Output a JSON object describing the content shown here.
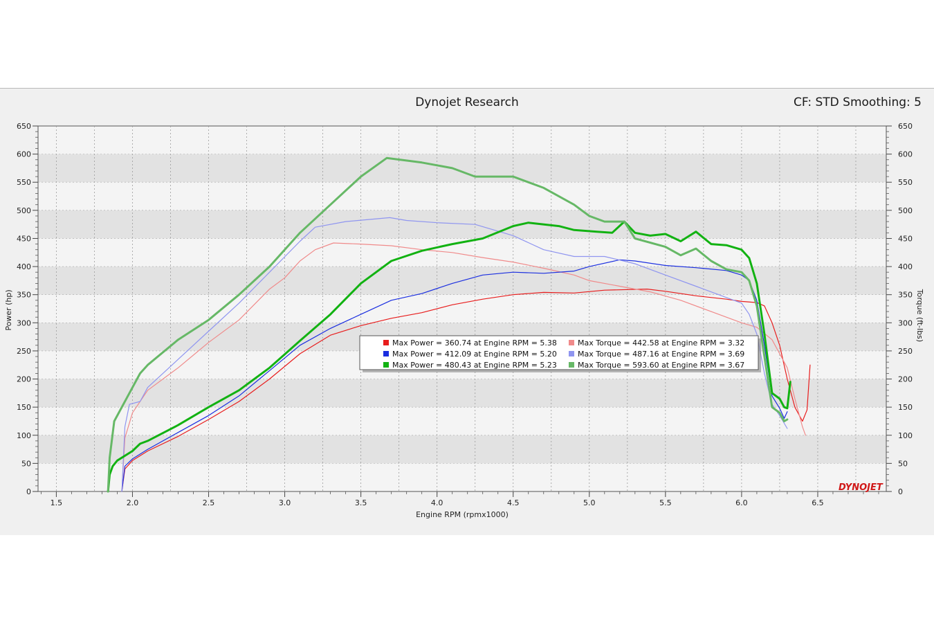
{
  "header": {
    "title": "Dynojet Research",
    "settings": "CF: STD Smoothing: 5"
  },
  "logo": "DYNOJET",
  "colors": {
    "panel_bg": "#f0f0f0",
    "plot_bg_light": "#f4f4f4",
    "plot_bg_dark": "#e2e2e2",
    "run1": "#e81c1c",
    "run1_torque": "#f08a8a",
    "run2": "#1a2ee0",
    "run2_torque": "#8f95f0",
    "run3": "#12b212",
    "run3_torque": "#66b866"
  },
  "chart_data": {
    "type": "line",
    "title": "Dynojet Research",
    "xlabel": "Engine RPM (rpmx1000)",
    "ylabel": "Power (hp)",
    "ylabel_right": "Torque (ft-lbs)",
    "xlim": [
      1.38,
      6.95
    ],
    "ylim": [
      0,
      650
    ],
    "xticks": [
      "1.5",
      "2.0",
      "2.5",
      "3.0",
      "3.5",
      "4.0",
      "4.5",
      "5.0",
      "5.5",
      "6.0",
      "6.5"
    ],
    "yticks": [
      "0",
      "50",
      "100",
      "150",
      "200",
      "250",
      "300",
      "350",
      "400",
      "450",
      "500",
      "550",
      "600",
      "650"
    ],
    "grid": true,
    "legend_placement": "center",
    "legend": [
      {
        "label": "Max Power = 360.74 at Engine RPM = 5.38",
        "color": "#e81c1c"
      },
      {
        "label": "Max Torque = 442.58 at Engine RPM = 3.32",
        "color": "#f08a8a"
      },
      {
        "label": "Max Power = 412.09 at Engine RPM = 5.20",
        "color": "#1a2ee0"
      },
      {
        "label": "Max Torque = 487.16 at Engine RPM = 3.69",
        "color": "#8f95f0"
      },
      {
        "label": "Max Power = 480.43 at Engine RPM = 5.23",
        "color": "#12b212"
      },
      {
        "label": "Max Torque = 593.60 at Engine RPM = 3.67",
        "color": "#66b866"
      }
    ],
    "series": [
      {
        "color": "#e81c1c",
        "width": 1.2,
        "points": [
          [
            1.93,
            0
          ],
          [
            1.95,
            40
          ],
          [
            2.0,
            55
          ],
          [
            2.1,
            72
          ],
          [
            2.3,
            98
          ],
          [
            2.5,
            128
          ],
          [
            2.7,
            160
          ],
          [
            2.9,
            200
          ],
          [
            3.1,
            245
          ],
          [
            3.3,
            278
          ],
          [
            3.5,
            295
          ],
          [
            3.7,
            308
          ],
          [
            3.9,
            318
          ],
          [
            4.1,
            332
          ],
          [
            4.3,
            342
          ],
          [
            4.5,
            350
          ],
          [
            4.7,
            354
          ],
          [
            4.9,
            353
          ],
          [
            5.1,
            358
          ],
          [
            5.38,
            360
          ],
          [
            5.5,
            356
          ],
          [
            5.7,
            348
          ],
          [
            5.9,
            342
          ],
          [
            6.0,
            338
          ],
          [
            6.1,
            336
          ],
          [
            6.15,
            330
          ],
          [
            6.2,
            300
          ],
          [
            6.25,
            260
          ],
          [
            6.3,
            200
          ],
          [
            6.35,
            150
          ],
          [
            6.4,
            125
          ],
          [
            6.43,
            145
          ],
          [
            6.45,
            225
          ]
        ]
      },
      {
        "color": "#f08a8a",
        "width": 1.2,
        "points": [
          [
            1.93,
            0
          ],
          [
            1.95,
            95
          ],
          [
            2.0,
            140
          ],
          [
            2.1,
            180
          ],
          [
            2.3,
            220
          ],
          [
            2.5,
            265
          ],
          [
            2.7,
            305
          ],
          [
            2.9,
            360
          ],
          [
            3.0,
            380
          ],
          [
            3.1,
            410
          ],
          [
            3.2,
            430
          ],
          [
            3.32,
            442
          ],
          [
            3.5,
            440
          ],
          [
            3.7,
            437
          ],
          [
            3.9,
            430
          ],
          [
            4.1,
            425
          ],
          [
            4.3,
            416
          ],
          [
            4.5,
            408
          ],
          [
            4.7,
            397
          ],
          [
            4.9,
            385
          ],
          [
            5.0,
            375
          ],
          [
            5.2,
            365
          ],
          [
            5.4,
            355
          ],
          [
            5.6,
            340
          ],
          [
            5.8,
            320
          ],
          [
            6.0,
            300
          ],
          [
            6.1,
            292
          ],
          [
            6.2,
            270
          ],
          [
            6.3,
            220
          ],
          [
            6.35,
            165
          ],
          [
            6.4,
            115
          ],
          [
            6.42,
            100
          ]
        ]
      },
      {
        "color": "#1a2ee0",
        "width": 1.2,
        "points": [
          [
            1.93,
            0
          ],
          [
            1.95,
            45
          ],
          [
            2.0,
            58
          ],
          [
            2.1,
            75
          ],
          [
            2.3,
            105
          ],
          [
            2.5,
            135
          ],
          [
            2.7,
            170
          ],
          [
            2.9,
            215
          ],
          [
            3.1,
            260
          ],
          [
            3.3,
            290
          ],
          [
            3.5,
            315
          ],
          [
            3.7,
            340
          ],
          [
            3.9,
            352
          ],
          [
            4.1,
            370
          ],
          [
            4.3,
            385
          ],
          [
            4.5,
            390
          ],
          [
            4.7,
            388
          ],
          [
            4.9,
            392
          ],
          [
            5.0,
            400
          ],
          [
            5.2,
            412
          ],
          [
            5.3,
            410
          ],
          [
            5.5,
            402
          ],
          [
            5.7,
            398
          ],
          [
            5.9,
            393
          ],
          [
            6.0,
            385
          ],
          [
            6.05,
            375
          ],
          [
            6.1,
            340
          ],
          [
            6.15,
            260
          ],
          [
            6.2,
            170
          ],
          [
            6.25,
            148
          ],
          [
            6.28,
            130
          ],
          [
            6.3,
            142
          ]
        ]
      },
      {
        "color": "#8f95f0",
        "width": 1.2,
        "points": [
          [
            1.93,
            0
          ],
          [
            1.95,
            115
          ],
          [
            1.98,
            155
          ],
          [
            2.05,
            160
          ],
          [
            2.1,
            185
          ],
          [
            2.3,
            235
          ],
          [
            2.5,
            285
          ],
          [
            2.7,
            335
          ],
          [
            2.9,
            390
          ],
          [
            3.1,
            445
          ],
          [
            3.2,
            470
          ],
          [
            3.4,
            480
          ],
          [
            3.69,
            487
          ],
          [
            3.8,
            482
          ],
          [
            4.0,
            478
          ],
          [
            4.25,
            475
          ],
          [
            4.5,
            455
          ],
          [
            4.7,
            430
          ],
          [
            4.9,
            418
          ],
          [
            5.1,
            418
          ],
          [
            5.3,
            405
          ],
          [
            5.5,
            385
          ],
          [
            5.7,
            365
          ],
          [
            5.9,
            345
          ],
          [
            6.0,
            335
          ],
          [
            6.05,
            315
          ],
          [
            6.1,
            280
          ],
          [
            6.15,
            210
          ],
          [
            6.2,
            155
          ],
          [
            6.25,
            135
          ],
          [
            6.3,
            112
          ]
        ]
      },
      {
        "color": "#12b212",
        "width": 3,
        "points": [
          [
            1.84,
            0
          ],
          [
            1.85,
            30
          ],
          [
            1.87,
            45
          ],
          [
            1.9,
            55
          ],
          [
            2.0,
            72
          ],
          [
            2.05,
            85
          ],
          [
            2.1,
            90
          ],
          [
            2.3,
            118
          ],
          [
            2.5,
            150
          ],
          [
            2.7,
            180
          ],
          [
            2.9,
            220
          ],
          [
            3.1,
            268
          ],
          [
            3.3,
            315
          ],
          [
            3.5,
            370
          ],
          [
            3.7,
            410
          ],
          [
            3.9,
            428
          ],
          [
            4.1,
            440
          ],
          [
            4.3,
            450
          ],
          [
            4.5,
            472
          ],
          [
            4.6,
            478
          ],
          [
            4.8,
            472
          ],
          [
            4.9,
            465
          ],
          [
            5.05,
            462
          ],
          [
            5.15,
            460
          ],
          [
            5.23,
            480
          ],
          [
            5.3,
            460
          ],
          [
            5.4,
            455
          ],
          [
            5.5,
            458
          ],
          [
            5.6,
            445
          ],
          [
            5.7,
            462
          ],
          [
            5.8,
            440
          ],
          [
            5.9,
            438
          ],
          [
            6.0,
            430
          ],
          [
            6.05,
            415
          ],
          [
            6.1,
            370
          ],
          [
            6.15,
            280
          ],
          [
            6.2,
            175
          ],
          [
            6.25,
            165
          ],
          [
            6.28,
            150
          ],
          [
            6.3,
            148
          ],
          [
            6.32,
            195
          ]
        ]
      },
      {
        "color": "#66b866",
        "width": 3,
        "points": [
          [
            1.84,
            0
          ],
          [
            1.85,
            60
          ],
          [
            1.88,
            125
          ],
          [
            2.0,
            185
          ],
          [
            2.05,
            210
          ],
          [
            2.1,
            225
          ],
          [
            2.3,
            270
          ],
          [
            2.5,
            305
          ],
          [
            2.7,
            350
          ],
          [
            2.9,
            400
          ],
          [
            3.1,
            460
          ],
          [
            3.3,
            510
          ],
          [
            3.5,
            560
          ],
          [
            3.67,
            593
          ],
          [
            3.9,
            585
          ],
          [
            4.1,
            575
          ],
          [
            4.25,
            560
          ],
          [
            4.5,
            560
          ],
          [
            4.7,
            540
          ],
          [
            4.9,
            510
          ],
          [
            5.0,
            490
          ],
          [
            5.1,
            480
          ],
          [
            5.23,
            480
          ],
          [
            5.3,
            450
          ],
          [
            5.5,
            435
          ],
          [
            5.6,
            420
          ],
          [
            5.7,
            432
          ],
          [
            5.8,
            410
          ],
          [
            5.9,
            395
          ],
          [
            6.0,
            390
          ],
          [
            6.05,
            375
          ],
          [
            6.1,
            330
          ],
          [
            6.15,
            240
          ],
          [
            6.2,
            150
          ],
          [
            6.25,
            140
          ],
          [
            6.28,
            125
          ],
          [
            6.3,
            128
          ]
        ]
      }
    ]
  }
}
